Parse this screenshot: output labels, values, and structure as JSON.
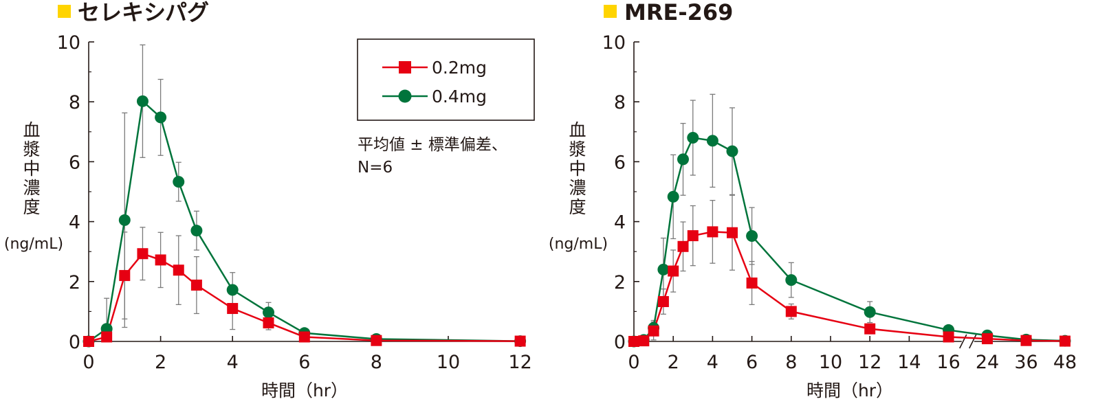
{
  "colors": {
    "title_marker": "#FFD400",
    "series_0_2mg": "#E60012",
    "series_0_4mg": "#00743B",
    "axis": "#231815"
  },
  "note": {
    "line1": "平均値 ± 標準偏差、",
    "line2": "N=6"
  },
  "chart_data": [
    {
      "type": "line",
      "title": "セレキシパグ",
      "xlabel": "時間（hr）",
      "ylabel_chars": [
        "血",
        "漿",
        "中",
        "濃",
        "度"
      ],
      "ylabel_unit": "(ng/mL)",
      "xlim": [
        0,
        12
      ],
      "ylim": [
        0,
        10
      ],
      "xticks": [
        0,
        2,
        4,
        6,
        8,
        10,
        12
      ],
      "xtick_labels": [
        "0",
        "2",
        "4",
        "6",
        "8",
        "10",
        "12"
      ],
      "yticks": [
        0,
        2,
        4,
        6,
        8,
        10
      ],
      "ytick_labels": [
        "0",
        "2",
        "4",
        "6",
        "8",
        "10"
      ],
      "legend": "top-right",
      "grid": false,
      "series": [
        {
          "name": "0.2mg",
          "marker": "square",
          "color": "#E60012",
          "x": [
            0,
            0.5,
            1,
            1.5,
            2,
            2.5,
            3,
            4,
            5,
            6,
            8,
            12
          ],
          "y": [
            0,
            0.15,
            2.2,
            2.93,
            2.72,
            2.38,
            1.88,
            1.1,
            0.62,
            0.15,
            0.03,
            0.01
          ],
          "err": [
            0,
            0,
            1.45,
            0.88,
            0.92,
            1.15,
            0.95,
            0.7,
            0.23,
            0.07,
            0.02,
            0
          ]
        },
        {
          "name": "0.4mg",
          "marker": "circle",
          "color": "#00743B",
          "x": [
            0,
            0.5,
            1,
            1.5,
            2,
            2.5,
            3,
            4,
            5,
            6,
            8,
            12
          ],
          "y": [
            0,
            0.42,
            4.05,
            8.02,
            7.48,
            5.33,
            3.7,
            1.72,
            0.97,
            0.28,
            0.08,
            0.01
          ],
          "err": [
            0,
            1.02,
            3.58,
            1.88,
            1.27,
            0.65,
            0.65,
            0.58,
            0.33,
            0.1,
            0.04,
            0
          ]
        }
      ]
    },
    {
      "type": "line",
      "title": "MRE-269",
      "xlabel": "時間（hr）",
      "ylabel_chars": [
        "血",
        "漿",
        "中",
        "濃",
        "度"
      ],
      "ylabel_unit": "(ng/mL)",
      "xlim": [
        0,
        48
      ],
      "ylim": [
        0,
        10
      ],
      "x_axis_break": "between 16 and 24",
      "xticks": [
        0,
        2,
        4,
        6,
        8,
        10,
        12,
        14,
        16,
        24,
        36,
        48
      ],
      "xtick_labels": [
        "0",
        "2",
        "4",
        "6",
        "8",
        "10",
        "12",
        "14",
        "16",
        "24",
        "36",
        "48"
      ],
      "yticks": [
        0,
        2,
        4,
        6,
        8,
        10
      ],
      "ytick_labels": [
        "0",
        "2",
        "4",
        "6",
        "8",
        "10"
      ],
      "grid": false,
      "series": [
        {
          "name": "0.2mg",
          "marker": "square",
          "color": "#E60012",
          "x": [
            0,
            0.5,
            1,
            1.5,
            2,
            2.5,
            3,
            4,
            5,
            6,
            8,
            12,
            16,
            24,
            36,
            48
          ],
          "y": [
            0,
            0.02,
            0.35,
            1.33,
            2.35,
            3.17,
            3.53,
            3.66,
            3.63,
            1.95,
            1.0,
            0.42,
            0.15,
            0.09,
            0.03,
            0.01
          ],
          "err": [
            0,
            0.02,
            0.3,
            0.42,
            0.7,
            0.82,
            1.0,
            1.05,
            1.25,
            0.72,
            0.25,
            0.1,
            0.05,
            0.03,
            0.01,
            0
          ]
        },
        {
          "name": "0.4mg",
          "marker": "circle",
          "color": "#00743B",
          "x": [
            0,
            0.5,
            1,
            1.5,
            2,
            2.5,
            3,
            4,
            5,
            6,
            8,
            12,
            16,
            24,
            36,
            48
          ],
          "y": [
            0,
            0.05,
            0.45,
            2.4,
            4.83,
            6.08,
            6.8,
            6.7,
            6.35,
            3.52,
            2.05,
            0.98,
            0.38,
            0.2,
            0.06,
            0.02
          ],
          "err": [
            0,
            0.05,
            0.25,
            1.05,
            1.4,
            1.2,
            1.25,
            1.55,
            1.45,
            0.95,
            0.58,
            0.35,
            0.1,
            0.06,
            0.03,
            0.01
          ]
        }
      ]
    }
  ]
}
